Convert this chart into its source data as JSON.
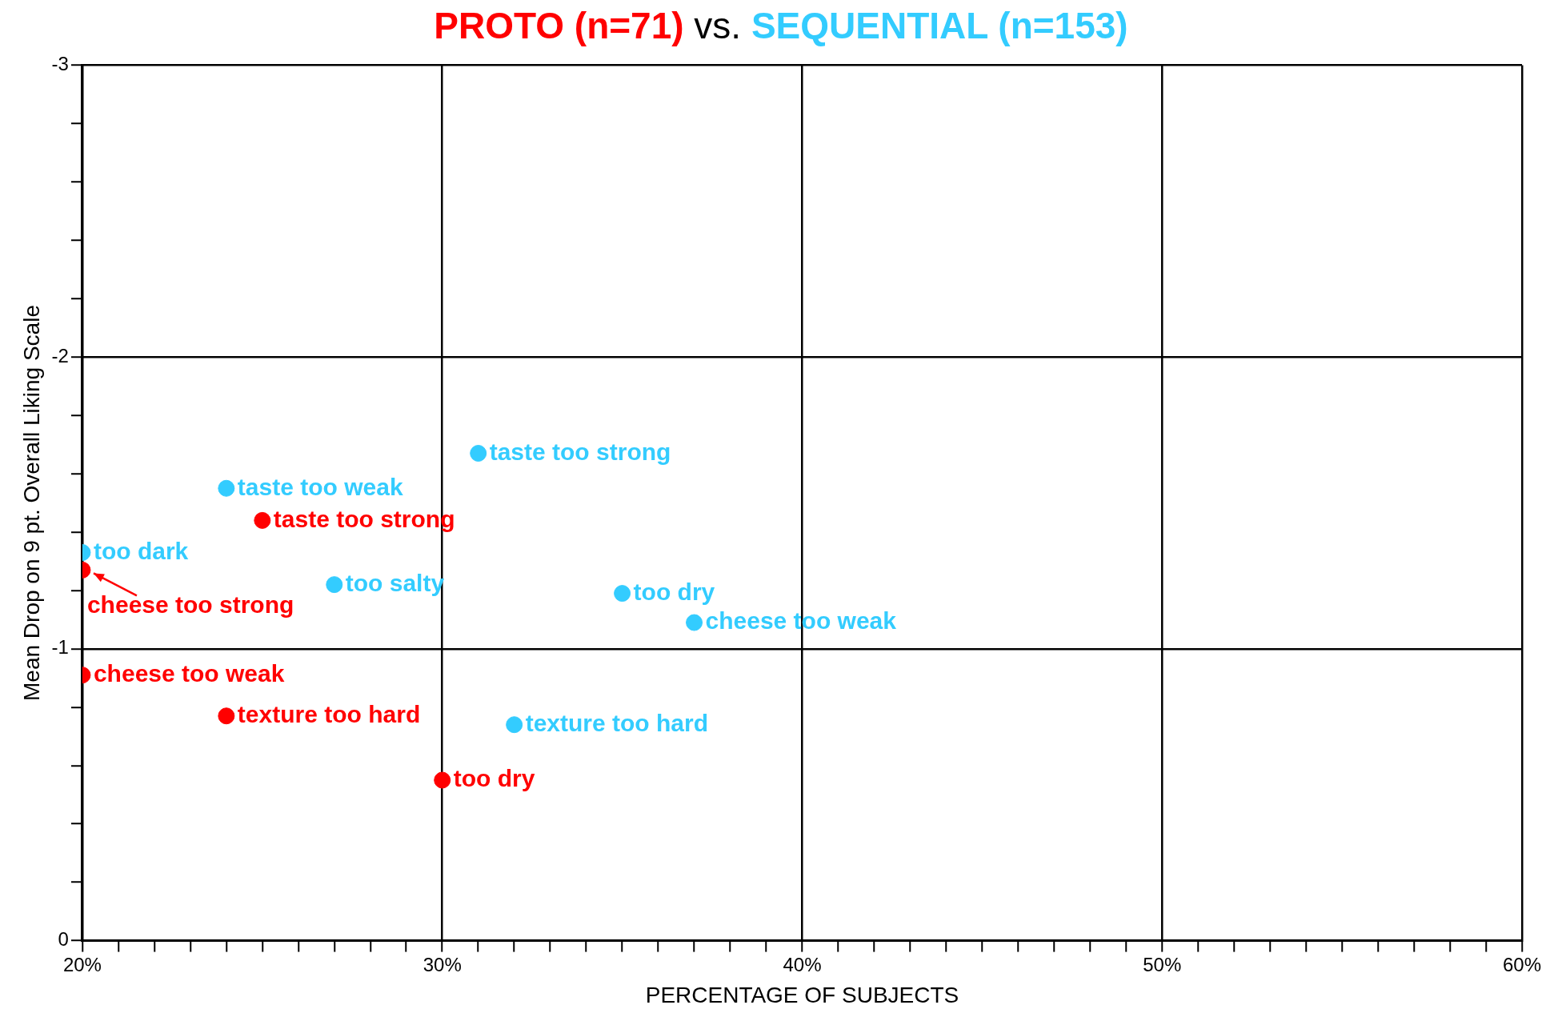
{
  "chart_data": {
    "type": "scatter",
    "title": "vs.",
    "xlabel": "PERCENTAGE OF SUBJECTS",
    "ylabel": "Mean Drop on 9 pt. Overall Liking Scale",
    "xlim": [
      20,
      60
    ],
    "xticks": [
      {
        "value": 20,
        "label": "20%"
      },
      {
        "value": 21,
        "label": null
      },
      {
        "value": 22,
        "label": null
      },
      {
        "value": 23,
        "label": null
      },
      {
        "value": 24,
        "label": null
      },
      {
        "value": 25,
        "label": null
      },
      {
        "value": 26,
        "label": null
      },
      {
        "value": 27,
        "label": null
      },
      {
        "value": 28,
        "label": null
      },
      {
        "value": 29,
        "label": null
      },
      {
        "value": 30,
        "label": "30%"
      },
      {
        "value": 31,
        "label": null
      },
      {
        "value": 32,
        "label": null
      },
      {
        "value": 33,
        "label": null
      },
      {
        "value": 34,
        "label": null
      },
      {
        "value": 35,
        "label": null
      },
      {
        "value": 36,
        "label": null
      },
      {
        "value": 37,
        "label": null
      },
      {
        "value": 38,
        "label": null
      },
      {
        "value": 39,
        "label": null
      },
      {
        "value": 40,
        "label": "40%"
      },
      {
        "value": 41,
        "label": null
      },
      {
        "value": 42,
        "label": null
      },
      {
        "value": 43,
        "label": null
      },
      {
        "value": 44,
        "label": null
      },
      {
        "value": 45,
        "label": null
      },
      {
        "value": 46,
        "label": null
      },
      {
        "value": 47,
        "label": null
      },
      {
        "value": 48,
        "label": null
      },
      {
        "value": 49,
        "label": null
      },
      {
        "value": 50,
        "label": "50%"
      },
      {
        "value": 51,
        "label": null
      },
      {
        "value": 52,
        "label": null
      },
      {
        "value": 53,
        "label": null
      },
      {
        "value": 54,
        "label": null
      },
      {
        "value": 55,
        "label": null
      },
      {
        "value": 56,
        "label": null
      },
      {
        "value": 57,
        "label": null
      },
      {
        "value": 58,
        "label": null
      },
      {
        "value": 59,
        "label": null
      },
      {
        "value": 60,
        "label": "60%"
      }
    ],
    "ylim": [
      0,
      -3
    ],
    "yticks": [
      {
        "value": -3,
        "label": "-3"
      },
      {
        "value": -2.8,
        "label": null
      },
      {
        "value": -2.6,
        "label": null
      },
      {
        "value": -2.4,
        "label": null
      },
      {
        "value": -2.2,
        "label": null
      },
      {
        "value": -2,
        "label": "-2"
      },
      {
        "value": -1.8,
        "label": null
      },
      {
        "value": -1.6,
        "label": null
      },
      {
        "value": -1.4,
        "label": null
      },
      {
        "value": -1.2,
        "label": null
      },
      {
        "value": -1,
        "label": "-1"
      },
      {
        "value": -0.8,
        "label": null
      },
      {
        "value": -0.6,
        "label": null
      },
      {
        "value": -0.4,
        "label": null
      },
      {
        "value": -0.2,
        "label": null
      },
      {
        "value": 0,
        "label": "0"
      }
    ],
    "grid": true,
    "marker": "circle",
    "series": [
      {
        "name": "PROTO (n=71)",
        "color": "#ff0000",
        "x": [
          25,
          20,
          20,
          24,
          30
        ],
        "values": [
          -1.44,
          -1.27,
          -0.91,
          -0.77,
          -0.55
        ],
        "value_labels": [
          "taste too strong",
          "cheese too strong",
          "cheese too weak",
          "texture too hard",
          "too dry"
        ]
      },
      {
        "name": "SEQUENTIAL (n=153)",
        "color": "#33ccff",
        "x": [
          31,
          24,
          20,
          27,
          35,
          37,
          32
        ],
        "values": [
          -1.67,
          -1.55,
          -1.33,
          -1.22,
          -1.19,
          -1.09,
          -0.74
        ],
        "value_labels": [
          "taste too strong",
          "taste too weak",
          "too dark",
          "too salty",
          "too dry",
          "cheese too weak",
          "texture too hard"
        ]
      }
    ]
  }
}
